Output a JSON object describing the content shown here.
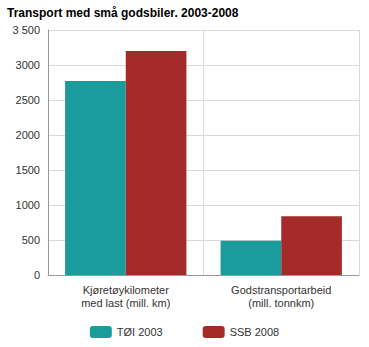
{
  "chart_data": {
    "type": "bar",
    "title": "Transport med små godsbiler. 2003-2008",
    "categories": [
      "Kjøretøykilometer\nmed last (mill. km)",
      "Godstransportarbeid\n(mill. tonnkm)"
    ],
    "series": [
      {
        "name": "TØI 2003",
        "color": "#1b9c9c",
        "values": [
          2770,
          490
        ]
      },
      {
        "name": "SSB 2008",
        "color": "#a52a2a",
        "values": [
          3200,
          840
        ]
      }
    ],
    "ylim": [
      0,
      3500
    ],
    "yticks": [
      0,
      500,
      1000,
      1500,
      2000,
      2500,
      3000,
      {
        "value": 3500,
        "label": "3 500"
      }
    ],
    "grid": true,
    "legend": "bottom"
  }
}
